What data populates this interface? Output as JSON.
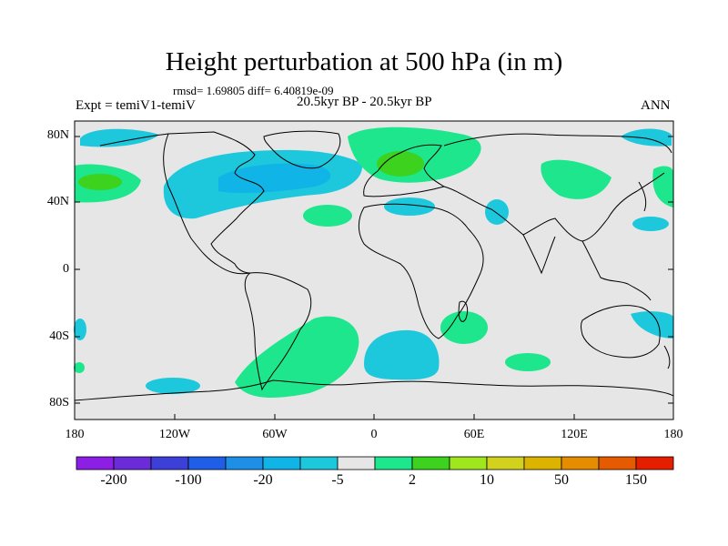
{
  "title": "Height perturbation at 500 hPa (in m)",
  "stats": "rmsd= 1.69805 diff= 6.40819e-09",
  "experiment": "Expt = temiV1-temiV",
  "period": "20.5kyr BP - 20.5kyr BP",
  "season": "ANN",
  "lat_labels": [
    "80N",
    "40N",
    "0",
    "40S",
    "80S"
  ],
  "lon_labels": [
    "180",
    "120W",
    "60W",
    "0",
    "60E",
    "120E",
    "180"
  ],
  "colorbar": {
    "labels": [
      "-200",
      "-100",
      "-20",
      "-5",
      "2",
      "10",
      "50",
      "150"
    ],
    "colors": [
      "#8c1ee6",
      "#6a2bd9",
      "#3d3fd9",
      "#1f5ee6",
      "#1e8fe6",
      "#10b4e6",
      "#1ec8dc",
      "#e6e6e6",
      "#1ee68c",
      "#3cd21e",
      "#a0e61e",
      "#d2d21e",
      "#dcb400",
      "#e68c00",
      "#e65a00",
      "#e61e00"
    ]
  },
  "colors": {
    "background": "#e6e6e6",
    "negative_light": "#1ec8dc",
    "negative_mid": "#10b4e6",
    "positive_light": "#1ee68c",
    "positive_mid": "#3cd21e"
  }
}
